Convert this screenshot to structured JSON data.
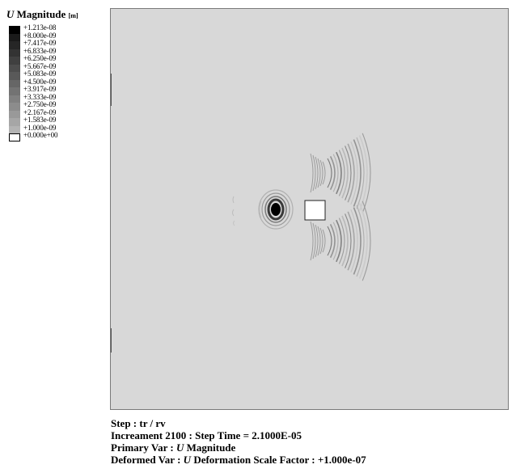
{
  "legend": {
    "symbol": "U",
    "title": "Magnitude",
    "unit": "[m]",
    "levels": [
      {
        "label": "+1.213e-08",
        "color": "#000000"
      },
      {
        "label": "+8.000e-09",
        "color": "#1a1a1a"
      },
      {
        "label": "+7.417e-09",
        "color": "#262626"
      },
      {
        "label": "+6.833e-09",
        "color": "#333333"
      },
      {
        "label": "+6.250e-09",
        "color": "#404040"
      },
      {
        "label": "+5.667e-09",
        "color": "#4d4d4d"
      },
      {
        "label": "+5.083e-09",
        "color": "#595959"
      },
      {
        "label": "+4.500e-09",
        "color": "#666666"
      },
      {
        "label": "+3.917e-09",
        "color": "#737373"
      },
      {
        "label": "+3.333e-09",
        "color": "#808080"
      },
      {
        "label": "+2.750e-09",
        "color": "#8c8c8c"
      },
      {
        "label": "+2.167e-09",
        "color": "#999999"
      },
      {
        "label": "+1.583e-09",
        "color": "#a6a6a6"
      },
      {
        "label": "+1.000e-09",
        "color": "#b3b3b3"
      },
      {
        "label": "+0.000e+00",
        "color": "#ffffff"
      }
    ]
  },
  "info": {
    "step": "Step : tr / rv",
    "increment": "Increament  2100 : Step Time  = 2.1000E-05",
    "primary_prefix": "Primary Var : ",
    "primary_symbol": "U",
    "primary_suffix": " Magnitude",
    "deformed_prefix": "Deformed Var : ",
    "deformed_symbol": "U",
    "deformed_suffix": " Deformation Scale Factor : +1.000e-07"
  },
  "colors": {
    "background": "#d8d8d8",
    "inclusion": "#ffffff"
  }
}
